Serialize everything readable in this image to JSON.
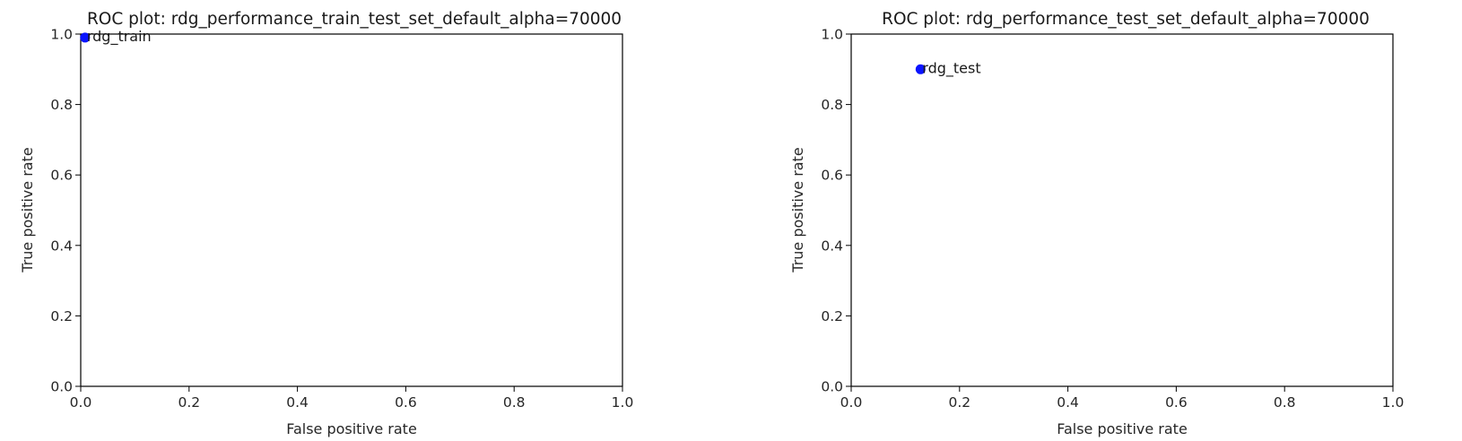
{
  "chart_data": [
    {
      "type": "scatter",
      "title": "ROC plot: rdg_performance_train_test_set_default_alpha=70000",
      "xlabel": "False positive rate",
      "ylabel": "True positive rate",
      "xlim": [
        0.0,
        1.0
      ],
      "ylim": [
        0.0,
        1.0
      ],
      "xticks": [
        "0.0",
        "0.2",
        "0.4",
        "0.6",
        "0.8",
        "1.0"
      ],
      "yticks": [
        "0.0",
        "0.2",
        "0.4",
        "0.6",
        "0.8",
        "1.0"
      ],
      "grid": false,
      "points": [
        {
          "label": "rdg_train",
          "x": 0.008,
          "y": 0.99
        }
      ],
      "color": "#0a14ff"
    },
    {
      "type": "scatter",
      "title": "ROC plot: rdg_performance_test_set_default_alpha=70000",
      "xlabel": "False positive rate",
      "ylabel": "True positive rate",
      "xlim": [
        0.0,
        1.0
      ],
      "ylim": [
        0.0,
        1.0
      ],
      "xticks": [
        "0.0",
        "0.2",
        "0.4",
        "0.6",
        "0.8",
        "1.0"
      ],
      "yticks": [
        "0.0",
        "0.2",
        "0.4",
        "0.6",
        "0.8",
        "1.0"
      ],
      "grid": false,
      "points": [
        {
          "label": "rdg_test",
          "x": 0.128,
          "y": 0.9
        }
      ],
      "color": "#0a14ff"
    }
  ]
}
